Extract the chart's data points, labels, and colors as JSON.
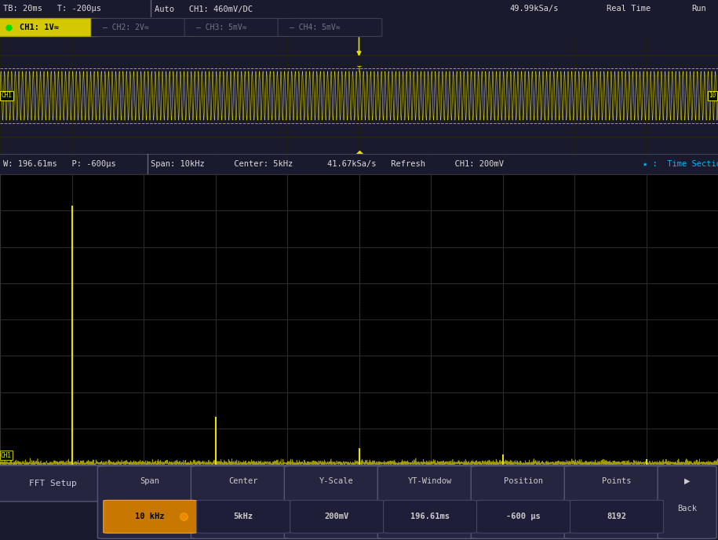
{
  "bg_color": "#000000",
  "top_bar_bg": "#1a1a2e",
  "tab_bar_bg": "#0d0d1a",
  "wave_bg": "#0a0800",
  "spec_bg": "#000000",
  "status_bar_bg": "#1c1c30",
  "bot_bar_bg": "#1a1a2e",
  "grid_color": "#2a2a1a",
  "spec_grid_color": "#333333",
  "yellow": "#e8e000",
  "bright_yellow": "#ffff00",
  "white": "#cccccc",
  "gray": "#888888",
  "harmonics_freq": [
    1000,
    3000,
    5000,
    7000,
    9000
  ],
  "harmonics_amp": [
    1.0,
    0.185,
    0.065,
    0.038,
    0.022
  ],
  "noise_amp": 0.007,
  "wave_cycles": 200,
  "wave_amplitude": 0.42
}
